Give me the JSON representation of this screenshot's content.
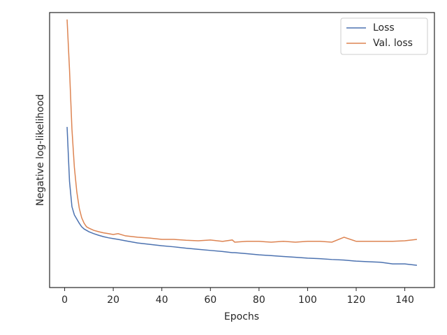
{
  "chart_data": {
    "type": "line",
    "xlabel": "Epochs",
    "ylabel": "Negative log-likelihood",
    "x": [
      1,
      2,
      3,
      4,
      5,
      6,
      7,
      8,
      9,
      10,
      12,
      14,
      16,
      18,
      20,
      22,
      25,
      30,
      35,
      40,
      45,
      50,
      55,
      60,
      65,
      69,
      70,
      75,
      80,
      85,
      90,
      95,
      100,
      105,
      110,
      115,
      120,
      125,
      130,
      135,
      140,
      145
    ],
    "series": [
      {
        "name": "Loss",
        "color": "#4c72b0",
        "values": [
          58.4,
          38.6,
          29.4,
          26.4,
          24.9,
          23.4,
          22.1,
          21.3,
          20.8,
          20.3,
          19.6,
          19.0,
          18.5,
          18.1,
          17.8,
          17.5,
          17.0,
          16.2,
          15.7,
          15.2,
          14.8,
          14.3,
          13.9,
          13.5,
          13.1,
          12.7,
          12.7,
          12.3,
          11.9,
          11.6,
          11.3,
          11.0,
          10.7,
          10.5,
          10.2,
          10.0,
          9.6,
          9.4,
          9.2,
          8.6,
          8.6,
          8.1
        ]
      },
      {
        "name": "Val. loss",
        "color": "#dd8452",
        "values": [
          97.5,
          79.2,
          57.6,
          43.7,
          34.8,
          28.9,
          25.4,
          23.4,
          22.1,
          21.6,
          20.8,
          20.3,
          19.9,
          19.6,
          19.3,
          19.6,
          18.8,
          18.3,
          18.0,
          17.5,
          17.5,
          17.2,
          17.0,
          17.3,
          16.8,
          17.3,
          16.5,
          16.8,
          16.8,
          16.5,
          16.8,
          16.5,
          16.8,
          16.8,
          16.5,
          18.3,
          16.8,
          16.8,
          16.8,
          16.8,
          17.0,
          17.5
        ]
      }
    ],
    "xlim": [
      -6.2,
      152.2
    ],
    "xticks": [
      0,
      20,
      40,
      60,
      80,
      100,
      120,
      140
    ],
    "ylim": [
      0,
      100
    ],
    "legend": "upper right"
  }
}
